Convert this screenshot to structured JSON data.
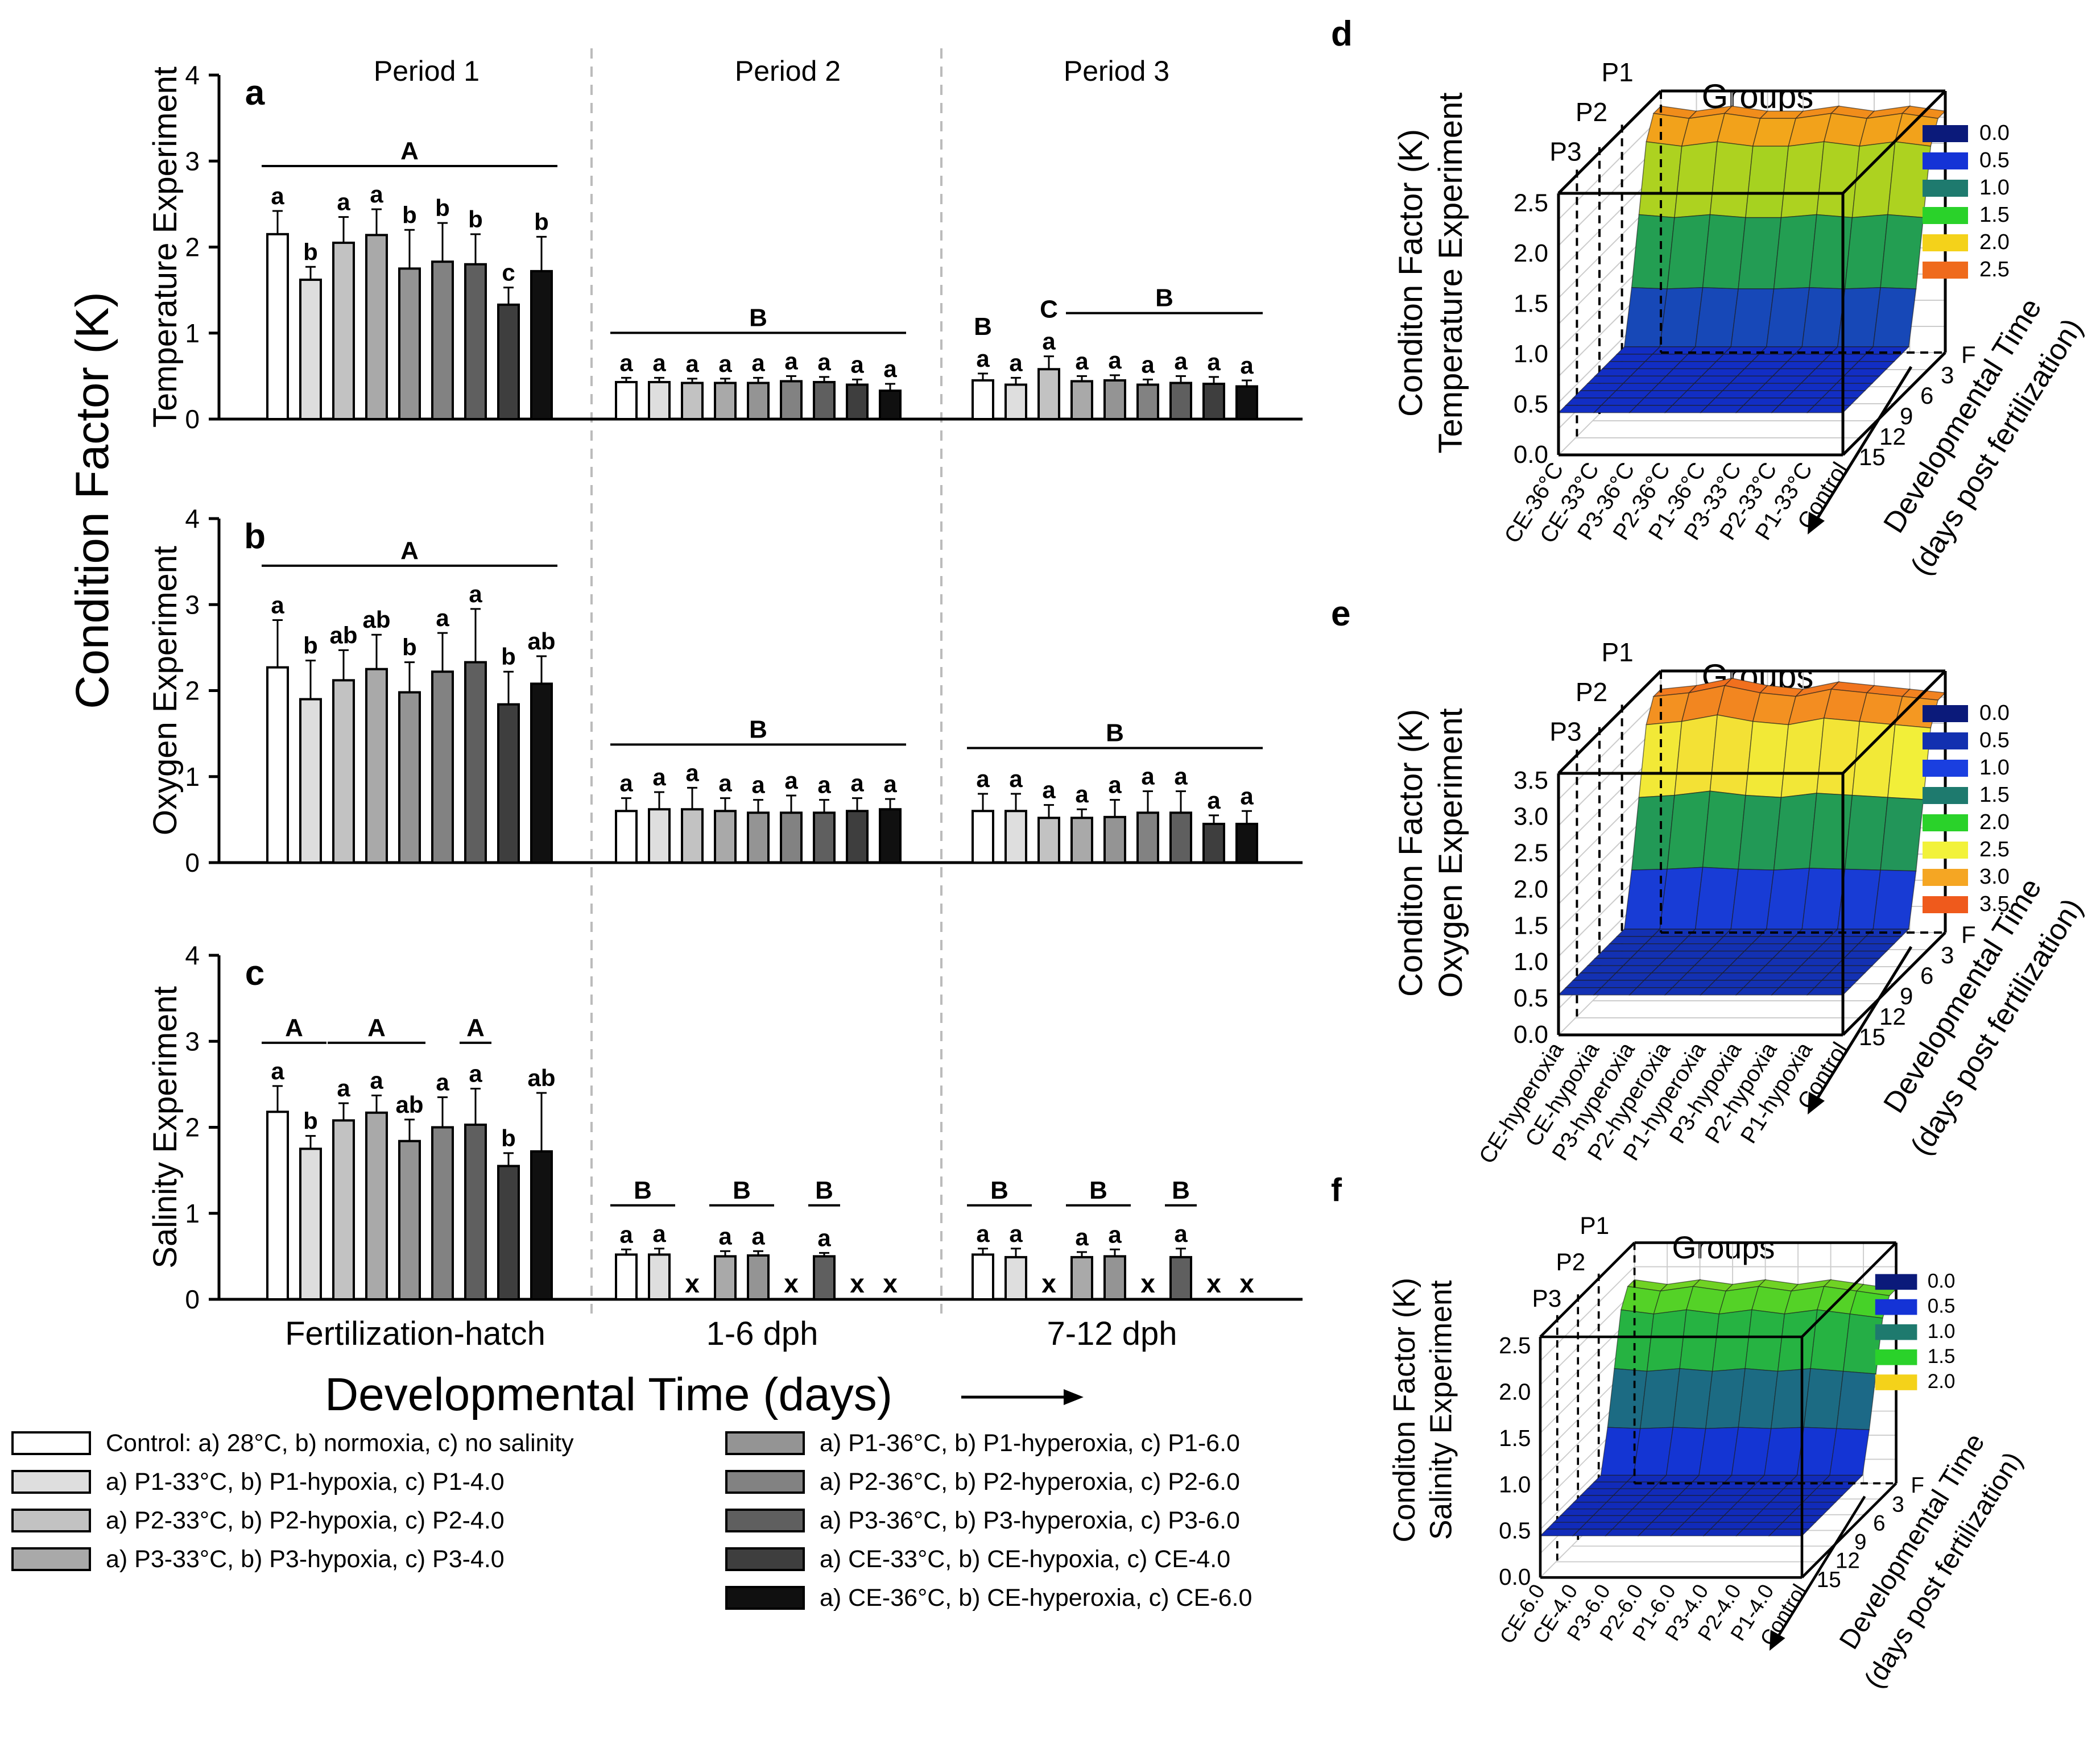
{
  "figure": {
    "y_axis_title": "Condition Factor (K)",
    "x_axis_title": "Developmental Time (days)",
    "period_labels": [
      "Period 1",
      "Period 2",
      "Period 3"
    ],
    "x_group_labels": [
      "Fertilization-hatch",
      "1-6 dph",
      "7-12 dph"
    ],
    "bar_colors": [
      "#ffffff",
      "#dedede",
      "#c2c2c2",
      "#a9a9a9",
      "#949494",
      "#828282",
      "#5f5f5f",
      "#3e3e3e",
      "#101010"
    ],
    "legend": [
      "Control: a) 28°C, b) normoxia, c) no salinity",
      "a) P1-33°C, b) P1-hypoxia, c) P1-4.0",
      "a) P2-33°C, b) P2-hypoxia, c) P2-4.0",
      "a) P3-33°C, b) P3-hypoxia, c) P3-4.0",
      "a) P1-36°C, b) P1-hyperoxia, c) P1-6.0",
      "a) P2-36°C, b) P2-hyperoxia, c) P2-6.0",
      "a) P3-36°C, b) P3-hyperoxia, c) P3-6.0",
      "a) CE-33°C, b) CE-hypoxia, c) CE-4.0",
      "a) CE-36°C, b) CE-hyperoxia, c) CE-6.0"
    ]
  },
  "chart_data": [
    {
      "type": "bar",
      "panel": "a",
      "ylabel": "Temperature Experiment",
      "ylim": [
        0,
        4
      ],
      "yticks": [
        "0",
        "1",
        "2",
        "3",
        "4"
      ],
      "groups": [
        {
          "values": [
            2.15,
            1.62,
            2.05,
            2.14,
            1.75,
            1.83,
            1.8,
            1.33,
            1.72
          ],
          "errors": [
            0.27,
            0.15,
            0.3,
            0.3,
            0.45,
            0.45,
            0.35,
            0.2,
            0.4
          ],
          "letters": [
            "a",
            "b",
            "a",
            "a",
            "b",
            "b",
            "b",
            "c",
            "b"
          ],
          "brackets": [
            {
              "label": "A",
              "from": 0,
              "to": 8
            }
          ]
        },
        {
          "values": [
            0.43,
            0.43,
            0.42,
            0.42,
            0.42,
            0.44,
            0.43,
            0.4,
            0.33
          ],
          "errors": [
            0.05,
            0.05,
            0.05,
            0.05,
            0.06,
            0.06,
            0.06,
            0.06,
            0.08
          ],
          "letters": [
            "a",
            "a",
            "a",
            "a",
            "a",
            "a",
            "a",
            "a",
            "a"
          ],
          "brackets": [
            {
              "label": "B",
              "from": 0,
              "to": 8
            }
          ]
        },
        {
          "values": [
            0.45,
            0.4,
            0.58,
            0.44,
            0.45,
            0.4,
            0.42,
            0.41,
            0.38
          ],
          "errors": [
            0.08,
            0.08,
            0.15,
            0.06,
            0.06,
            0.06,
            0.08,
            0.08,
            0.07
          ],
          "letters": [
            "a",
            "a",
            "a",
            "a",
            "a",
            "a",
            "a",
            "a",
            "a"
          ],
          "extra_letters": [
            {
              "index": 0,
              "label": "B"
            },
            {
              "index": 2,
              "label": "C"
            }
          ],
          "brackets": [
            {
              "label": "B",
              "from": 3,
              "to": 8
            }
          ]
        }
      ]
    },
    {
      "type": "bar",
      "panel": "b",
      "ylabel": "Oxygen Experiment",
      "ylim": [
        0,
        4
      ],
      "yticks": [
        "0",
        "1",
        "2",
        "3",
        "4"
      ],
      "groups": [
        {
          "values": [
            2.27,
            1.9,
            2.12,
            2.25,
            1.98,
            2.22,
            2.33,
            1.84,
            2.08
          ],
          "errors": [
            0.55,
            0.45,
            0.35,
            0.4,
            0.35,
            0.45,
            0.62,
            0.38,
            0.32
          ],
          "letters": [
            "a",
            "b",
            "ab",
            "ab",
            "b",
            "a",
            "a",
            "b",
            "ab"
          ],
          "brackets": [
            {
              "label": "A",
              "from": 0,
              "to": 8
            }
          ]
        },
        {
          "values": [
            0.6,
            0.62,
            0.62,
            0.6,
            0.58,
            0.58,
            0.58,
            0.6,
            0.62
          ],
          "errors": [
            0.15,
            0.2,
            0.25,
            0.15,
            0.15,
            0.2,
            0.15,
            0.15,
            0.12
          ],
          "letters": [
            "a",
            "a",
            "a",
            "a",
            "a",
            "a",
            "a",
            "a",
            "a"
          ],
          "brackets": [
            {
              "label": "B",
              "from": 0,
              "to": 8
            }
          ]
        },
        {
          "values": [
            0.6,
            0.6,
            0.52,
            0.52,
            0.53,
            0.58,
            0.58,
            0.45,
            0.45
          ],
          "errors": [
            0.2,
            0.2,
            0.15,
            0.1,
            0.2,
            0.25,
            0.25,
            0.1,
            0.15
          ],
          "letters": [
            "a",
            "a",
            "a",
            "a",
            "a",
            "a",
            "a",
            "a",
            "a"
          ],
          "brackets": [
            {
              "label": "B",
              "from": 0,
              "to": 8
            }
          ]
        }
      ]
    },
    {
      "type": "bar",
      "panel": "c",
      "ylabel": "Salinity Experiment",
      "ylim": [
        0,
        4
      ],
      "yticks": [
        "0",
        "1",
        "2",
        "3",
        "4"
      ],
      "groups": [
        {
          "values": [
            2.18,
            1.75,
            2.08,
            2.17,
            1.84,
            2.0,
            2.03,
            1.55,
            1.72
          ],
          "errors": [
            0.3,
            0.15,
            0.2,
            0.2,
            0.25,
            0.35,
            0.42,
            0.15,
            0.68
          ],
          "letters": [
            "a",
            "b",
            "a",
            "a",
            "ab",
            "a",
            "a",
            "b",
            "ab"
          ],
          "brackets": [
            {
              "label": "A",
              "from": 0,
              "to": 1
            },
            {
              "label": "A",
              "from": 2,
              "to": 4
            },
            {
              "label": "A",
              "from": 6,
              "to": 6
            }
          ]
        },
        {
          "values": [
            0.52,
            0.52,
            null,
            0.5,
            0.51,
            null,
            0.5,
            null,
            null
          ],
          "errors": [
            0.06,
            0.07,
            0,
            0.06,
            0.05,
            0,
            0.04,
            0,
            0
          ],
          "letters": [
            "a",
            "a",
            "x",
            "a",
            "a",
            "x",
            "a",
            "x",
            "x"
          ],
          "brackets": [
            {
              "label": "B",
              "from": 0,
              "to": 1
            },
            {
              "label": "B",
              "from": 3,
              "to": 4
            },
            {
              "label": "B",
              "from": 6,
              "to": 6
            }
          ]
        },
        {
          "values": [
            0.52,
            0.49,
            null,
            0.49,
            0.5,
            null,
            0.49,
            null,
            null
          ],
          "errors": [
            0.07,
            0.1,
            0,
            0.06,
            0.08,
            0,
            0.1,
            0,
            0
          ],
          "letters": [
            "a",
            "a",
            "x",
            "a",
            "a",
            "x",
            "a",
            "x",
            "x"
          ],
          "brackets": [
            {
              "label": "B",
              "from": 0,
              "to": 1
            },
            {
              "label": "B",
              "from": 3,
              "to": 4
            },
            {
              "label": "B",
              "from": 6,
              "to": 6
            }
          ]
        }
      ]
    },
    {
      "type": "surface3d",
      "panel": "d",
      "ylabel_lines": [
        "Conditon Factor (K)",
        "Temperature Experiment"
      ],
      "title": "Groups",
      "period_markers": [
        "P3",
        "P2",
        "P1"
      ],
      "zticks": [
        "0.0",
        "0.5",
        "1.0",
        "1.5",
        "2.0",
        "2.5"
      ],
      "zmax": 2.6,
      "groups": [
        "CE-36°C",
        "CE-33°C",
        "P3-36°C",
        "P2-36°C",
        "P1-36°C",
        "P3-33°C",
        "P2-33°C",
        "P1-33°C",
        "Control"
      ],
      "time_ticks": [
        "F",
        "3",
        "6",
        "9",
        "12",
        "15"
      ],
      "time_label_lines": [
        "Developmental Time",
        "(days post fertilization)"
      ],
      "legend": [
        {
          "label": "0.0",
          "color": "#0b1a7a"
        },
        {
          "label": "0.5",
          "color": "#1433d6"
        },
        {
          "label": "1.0",
          "color": "#1e7a6e"
        },
        {
          "label": "1.5",
          "color": "#2ad22a"
        },
        {
          "label": "2.0",
          "color": "#f4d21a"
        },
        {
          "label": "2.5",
          "color": "#ef6a1c"
        }
      ],
      "fertilization_plateau": [
        2.45,
        2.4,
        2.45,
        2.4,
        2.4,
        2.45,
        2.4,
        2.45,
        2.4
      ],
      "late_value": 0.42
    },
    {
      "type": "surface3d",
      "panel": "e",
      "ylabel_lines": [
        "Conditon Factor (K)",
        "Oxygen Experiment"
      ],
      "title": "Groups",
      "period_markers": [
        "P3",
        "P2",
        "P1"
      ],
      "zticks": [
        "0.0",
        "0.5",
        "1.0",
        "1.5",
        "2.0",
        "2.5",
        "3.0",
        "3.5"
      ],
      "zmax": 3.6,
      "groups": [
        "CE-hyperoxia",
        "CE-hypoxia",
        "P3-hyperoxia",
        "P2-hyperoxia",
        "P1-hyperoxia",
        "P3-hypoxia",
        "P2-hypoxia",
        "P1-hypoxia",
        "Control"
      ],
      "time_ticks": [
        "F",
        "3",
        "6",
        "9",
        "12",
        "15"
      ],
      "time_label_lines": [
        "Developmental Time",
        "(days post fertilization)"
      ],
      "legend": [
        {
          "label": "0.0",
          "color": "#0b1a7a"
        },
        {
          "label": "0.5",
          "color": "#1230b0"
        },
        {
          "label": "1.0",
          "color": "#1a3fe0"
        },
        {
          "label": "1.5",
          "color": "#1e7a6e"
        },
        {
          "label": "2.0",
          "color": "#2ad22a"
        },
        {
          "label": "2.5",
          "color": "#f2f23a"
        },
        {
          "label": "3.0",
          "color": "#f5a623"
        },
        {
          "label": "3.5",
          "color": "#ef5a1c"
        }
      ],
      "fertilization_plateau": [
        3.35,
        3.4,
        3.5,
        3.4,
        3.35,
        3.45,
        3.4,
        3.35,
        3.3
      ],
      "late_value": 0.55
    },
    {
      "type": "surface3d",
      "panel": "f",
      "ylabel_lines": [
        "Conditon Factor (K)",
        "Salinity Experiment"
      ],
      "title": "Groups",
      "period_markers": [
        "P3",
        "P2",
        "P1"
      ],
      "zticks": [
        "0.0",
        "0.5",
        "1.0",
        "1.5",
        "2.0",
        "2.5"
      ],
      "zmax": 2.6,
      "groups": [
        "CE-6.0",
        "CE-4.0",
        "P3-6.0",
        "P2-6.0",
        "P1-6.0",
        "P3-4.0",
        "P2-4.0",
        "P1-4.0",
        "Control"
      ],
      "time_ticks": [
        "F",
        "3",
        "6",
        "9",
        "12",
        "15"
      ],
      "time_label_lines": [
        "Developmental Time",
        "(days post fertilization)"
      ],
      "legend": [
        {
          "label": "0.0",
          "color": "#0b1a7a"
        },
        {
          "label": "0.5",
          "color": "#1433d6"
        },
        {
          "label": "1.0",
          "color": "#1e7a6e"
        },
        {
          "label": "1.5",
          "color": "#2ad22a"
        },
        {
          "label": "2.0",
          "color": "#f4d21a"
        }
      ],
      "fertilization_plateau": [
        2.2,
        2.15,
        2.2,
        2.15,
        2.2,
        2.15,
        2.2,
        2.15,
        2.1
      ],
      "late_value": 0.45
    }
  ]
}
